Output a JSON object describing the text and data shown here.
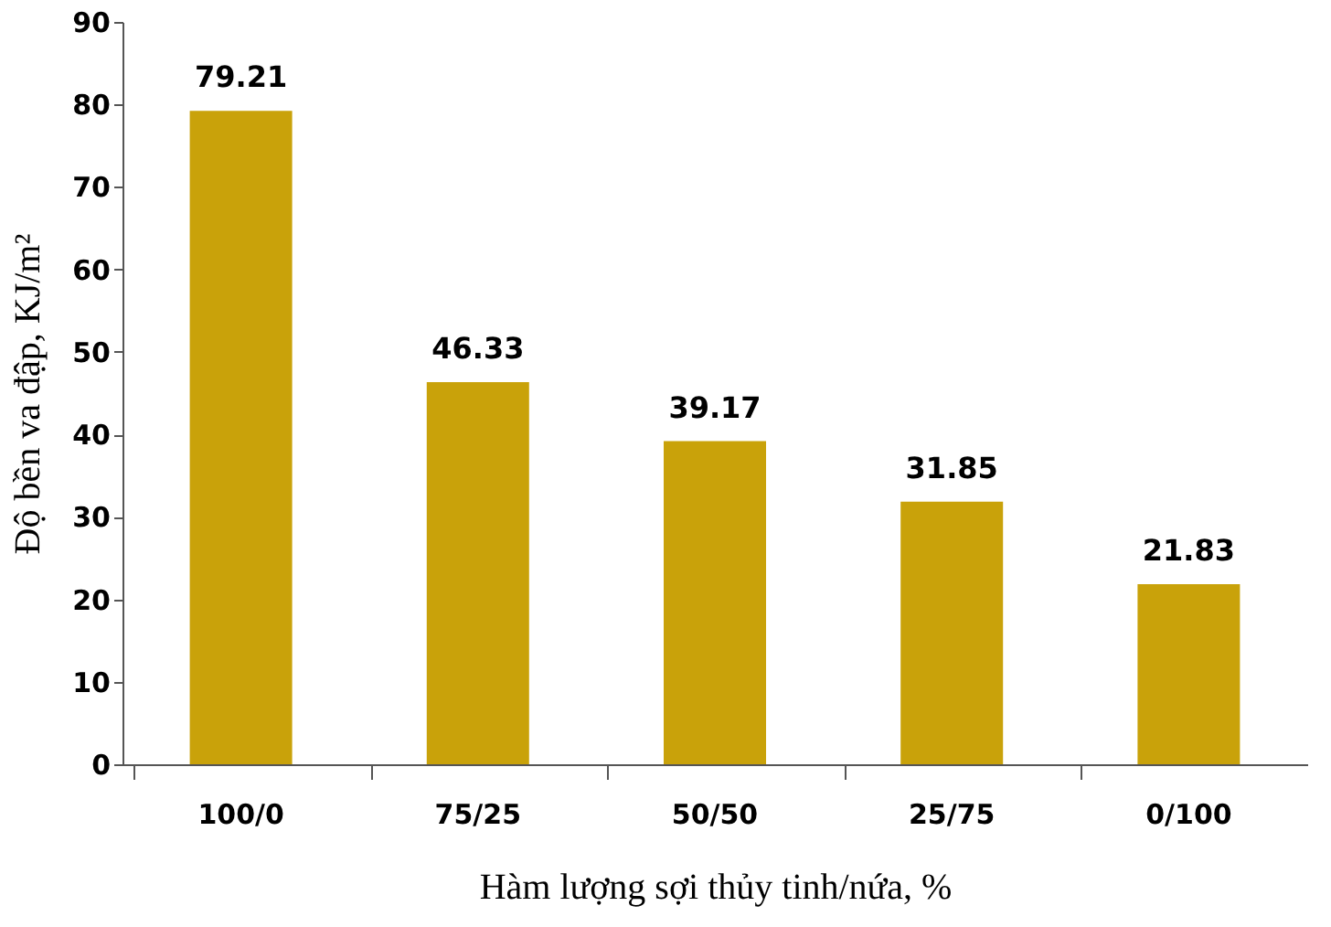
{
  "chart_data": {
    "type": "bar",
    "xlabel": "Hàm lượng sợi thủy tinh/nứa, %",
    "ylabel": "Độ bền va đập, KJ/m²",
    "categories": [
      "100/0",
      "75/25",
      "50/50",
      "25/75",
      "0/100"
    ],
    "values": [
      79.21,
      46.33,
      39.17,
      31.85,
      21.83
    ],
    "color": "#c9a20a",
    "ylim": [
      0,
      90
    ],
    "yticks": [
      0,
      10,
      20,
      30,
      40,
      50,
      60,
      70,
      80,
      90
    ],
    "data_labels": true,
    "grid": false
  }
}
